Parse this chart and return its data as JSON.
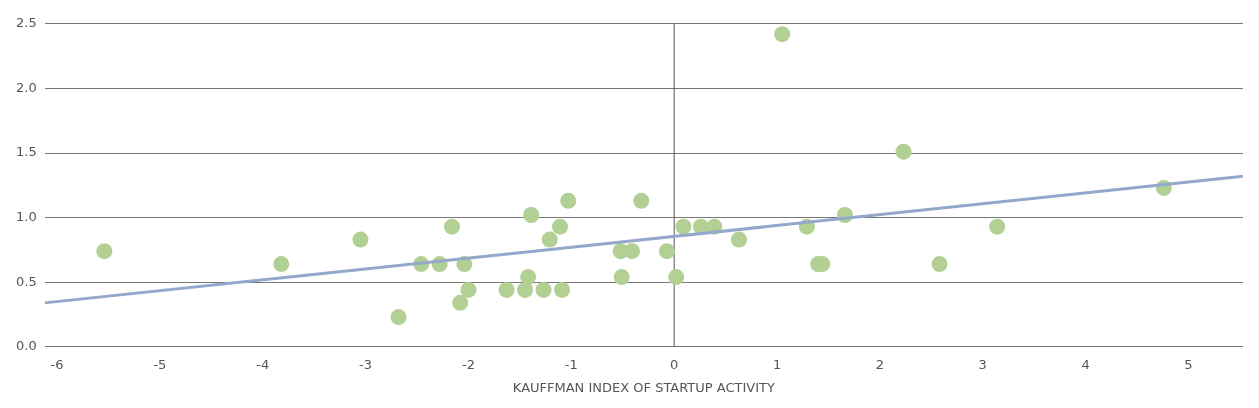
{
  "chart_data": {
    "type": "scatter",
    "xlabel": "KAUFFMAN INDEX OF STARTUP ACTIVITY",
    "xlim": [
      -6.12,
      5.53
    ],
    "xticks": [
      -6,
      -5,
      -4,
      -3,
      -2,
      -1,
      0,
      1,
      2,
      3,
      4,
      5
    ],
    "ylim": [
      0,
      2.5
    ],
    "yticks": [
      {
        "value": 0,
        "label": "0.0"
      },
      {
        "value": 0.5,
        "label": "0.5"
      },
      {
        "value": 1,
        "label": "1.0"
      },
      {
        "value": 1.5,
        "label": "1.5"
      },
      {
        "value": 2,
        "label": "2.0"
      },
      {
        "value": 2.5,
        "label": "2.5"
      }
    ],
    "grid": "y",
    "legend": false,
    "marker": "circle",
    "ref_lines": [
      {
        "axis": "x",
        "value": 0,
        "color": "#555555"
      }
    ],
    "series": [
      {
        "type": "scatter",
        "color": "#b2cf94",
        "x": [
          -5.54,
          -3.82,
          -3.05,
          -2.68,
          -2.46,
          -2.28,
          -2.16,
          -2.08,
          -2.04,
          -2.0,
          -1.63,
          -1.45,
          -1.42,
          -1.39,
          -1.27,
          -1.21,
          -1.11,
          -1.09,
          -1.03,
          -0.52,
          -0.51,
          -0.41,
          -0.32,
          -0.07,
          0.02,
          0.09,
          0.26,
          0.39,
          0.63,
          1.05,
          1.29,
          1.4,
          1.44,
          1.66,
          2.23,
          2.58,
          3.14,
          4.76
        ],
        "values": [
          0.74,
          0.64,
          0.83,
          0.23,
          0.64,
          0.64,
          0.93,
          0.34,
          0.64,
          0.44,
          0.44,
          0.44,
          0.54,
          1.02,
          0.44,
          0.83,
          0.93,
          0.44,
          1.13,
          0.74,
          0.54,
          0.74,
          1.13,
          0.74,
          0.54,
          0.93,
          0.93,
          0.93,
          0.83,
          2.42,
          0.93,
          0.64,
          0.64,
          1.02,
          1.51,
          0.64,
          0.93,
          1.23
        ]
      },
      {
        "type": "line",
        "color": "#94a8cc",
        "marker": "none",
        "x": [
          -6.12,
          5.53
        ],
        "values": [
          0.34,
          1.32
        ]
      }
    ]
  }
}
